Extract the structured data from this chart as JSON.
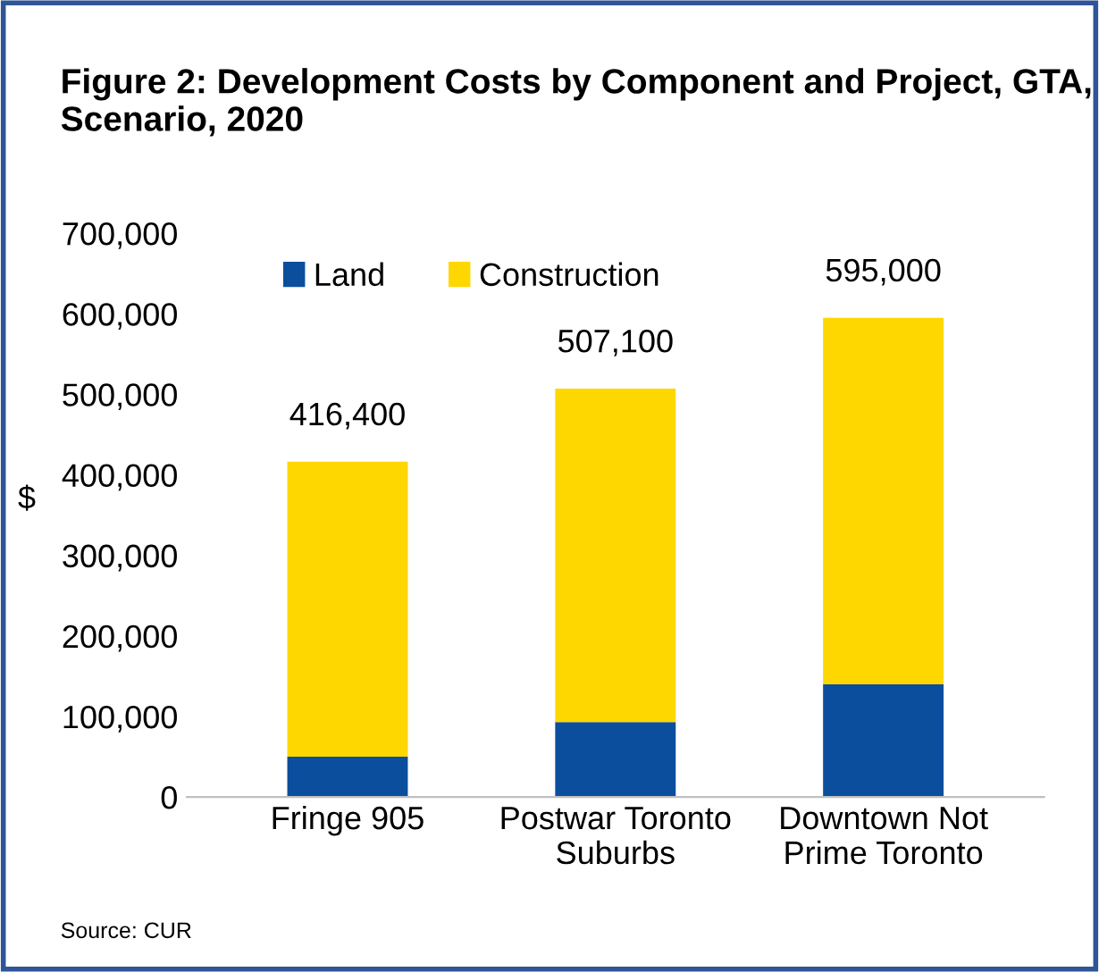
{
  "chart_data": {
    "type": "bar",
    "title": "Figure 2: Development Costs by Component and Project, GTA, Scenario, 2020",
    "categories": [
      "Fringe 905",
      "Postwar Toronto\nSuburbs",
      "Downtown Not\nPrime Toronto"
    ],
    "series": [
      {
        "name": "Land",
        "color": "#0b4e9e",
        "values": [
          50000,
          93000,
          140000
        ]
      },
      {
        "name": "Construction",
        "color": "#ffd700",
        "values": [
          366400,
          414100,
          455000
        ]
      }
    ],
    "stacked": true,
    "totals": [
      "416,400",
      "507,100",
      "595,000"
    ],
    "ylabel": "$",
    "ylim": [
      0,
      700000
    ],
    "yticks": [
      {
        "value": 0,
        "label": "0"
      },
      {
        "value": 100000,
        "label": "100,000"
      },
      {
        "value": 200000,
        "label": "200,000"
      },
      {
        "value": 300000,
        "label": "300,000"
      },
      {
        "value": 400000,
        "label": "400,000"
      },
      {
        "value": 500000,
        "label": "500,000"
      },
      {
        "value": 600000,
        "label": "600,000"
      },
      {
        "value": 700000,
        "label": "700,000"
      }
    ],
    "grid": false,
    "legend": "top left",
    "annotations": [
      "Source: CUR"
    ]
  }
}
